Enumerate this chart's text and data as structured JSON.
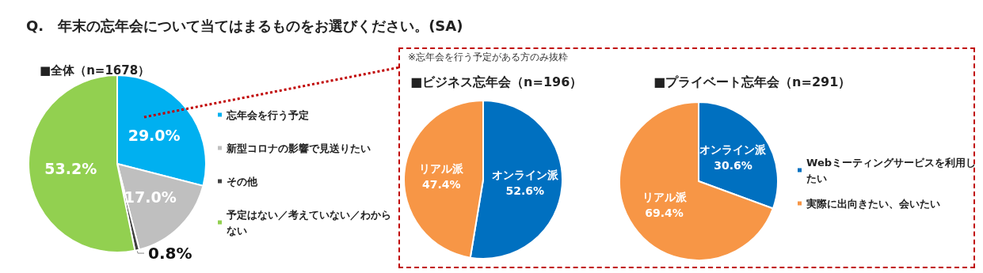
{
  "chart_data": [
    {
      "type": "pie",
      "title": "Q.　年末の忘年会について当てはまるものをお選びください。(SA)",
      "subtitle": "■全体（n=1678）",
      "categories": [
        "忘年会を行う予定",
        "新型コロナの影響で見送りたい",
        "その他",
        "予定はない／考えていない／わからない"
      ],
      "values": [
        29.0,
        17.0,
        0.8,
        53.2
      ],
      "colors": [
        "#00b0f0",
        "#bfbfbf",
        "#404040",
        "#92d050"
      ],
      "value_labels": [
        "29.0%",
        "17.0%",
        "0.8%",
        "53.2%"
      ],
      "legend": "right"
    },
    {
      "type": "pie",
      "title": "■ビジネス忘年会（n=196）",
      "annotations": [
        "※忘年会を行う予定がある方のみ抜粋"
      ],
      "categories": [
        "オンライン派",
        "リアル派"
      ],
      "values": [
        52.6,
        47.4
      ],
      "colors": [
        "#0070c0",
        "#f79646"
      ],
      "value_labels": [
        "52.6%",
        "47.4%"
      ]
    },
    {
      "type": "pie",
      "title": "■プライベート忘年会（n=291）",
      "categories": [
        "Webミーティングサービスを利用したい",
        "実際に出向きたい、会いたい"
      ],
      "values": [
        30.6,
        69.4
      ],
      "colors": [
        "#0070c0",
        "#f79646"
      ],
      "value_labels": [
        "オンライン派\n30.6%",
        "リアル派\n69.4%"
      ],
      "legend": "right"
    }
  ]
}
